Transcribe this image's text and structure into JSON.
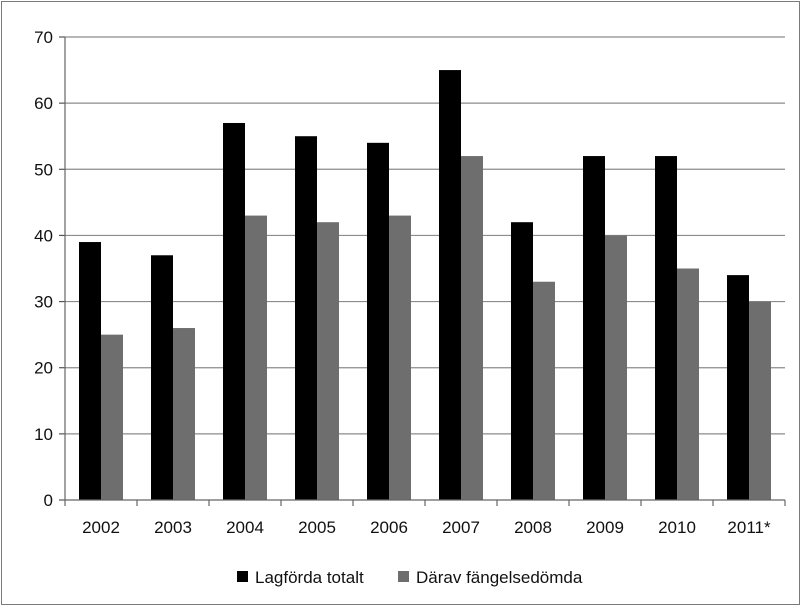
{
  "chart_data": {
    "type": "bar",
    "categories": [
      "2002",
      "2003",
      "2004",
      "2005",
      "2006",
      "2007",
      "2008",
      "2009",
      "2010",
      "2011*"
    ],
    "series": [
      {
        "name": "Lagförda totalt",
        "color": "#000000",
        "values": [
          39,
          37,
          57,
          55,
          54,
          65,
          42,
          52,
          52,
          34
        ]
      },
      {
        "name": "Därav fängelsedömda",
        "color": "#6e6e6e",
        "values": [
          25,
          26,
          43,
          42,
          43,
          52,
          33,
          40,
          35,
          30
        ]
      }
    ],
    "ylim": [
      0,
      70
    ],
    "yticks": [
      0,
      10,
      20,
      30,
      40,
      50,
      60,
      70
    ],
    "grid": true,
    "legend_position": "bottom-center",
    "xlabel": "",
    "ylabel": ""
  }
}
